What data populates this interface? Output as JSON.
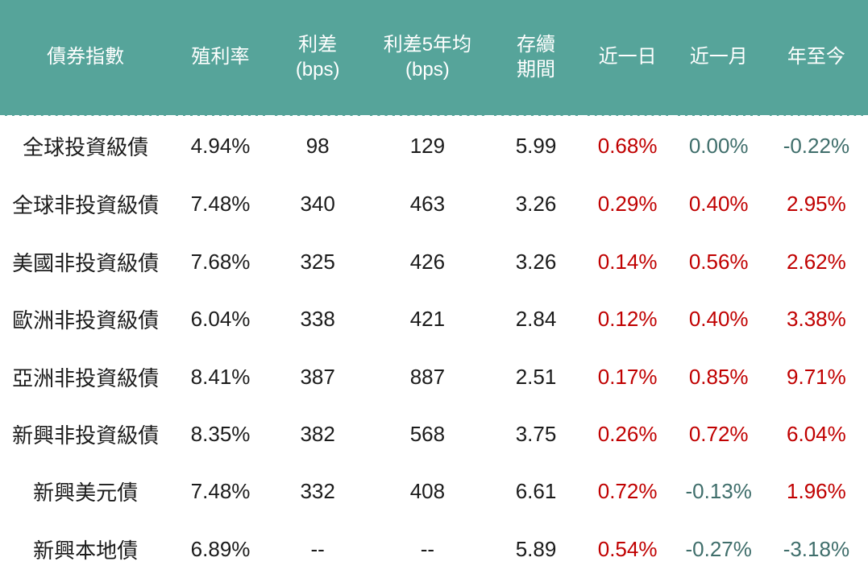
{
  "chart_data": {
    "type": "table",
    "columns": [
      "債券指數",
      "殖利率",
      "利差\n(bps)",
      "利差5年均\n(bps)",
      "存續\n期間",
      "近一日",
      "近一月",
      "年至今"
    ],
    "rows": [
      [
        "全球投資級債",
        "4.94%",
        "98",
        "129",
        "5.99",
        "0.68%",
        "0.00%",
        "-0.22%"
      ],
      [
        "全球非投資級債",
        "7.48%",
        "340",
        "463",
        "3.26",
        "0.29%",
        "0.40%",
        "2.95%"
      ],
      [
        "美國非投資級債",
        "7.68%",
        "325",
        "426",
        "3.26",
        "0.14%",
        "0.56%",
        "2.62%"
      ],
      [
        "歐洲非投資級債",
        "6.04%",
        "338",
        "421",
        "2.84",
        "0.12%",
        "0.40%",
        "3.38%"
      ],
      [
        "亞洲非投資級債",
        "8.41%",
        "387",
        "887",
        "2.51",
        "0.17%",
        "0.85%",
        "9.71%"
      ],
      [
        "新興非投資級債",
        "8.35%",
        "382",
        "568",
        "3.75",
        "0.26%",
        "0.72%",
        "6.04%"
      ],
      [
        "新興美元債",
        "7.48%",
        "332",
        "408",
        "6.61",
        "0.72%",
        "-0.13%",
        "1.96%"
      ],
      [
        "新興本地債",
        "6.89%",
        "--",
        "--",
        "5.89",
        "0.54%",
        "-0.27%",
        "-3.18%"
      ]
    ],
    "change_column_indices": [
      5,
      6,
      7
    ],
    "colors": {
      "header_bg": "#56a49a",
      "header_text": "#ffffff",
      "body_text": "#1b1b1b",
      "positive_change": "#c00000",
      "negative_or_zero_change": "#3f6e6b",
      "background": "#ffffff"
    }
  }
}
